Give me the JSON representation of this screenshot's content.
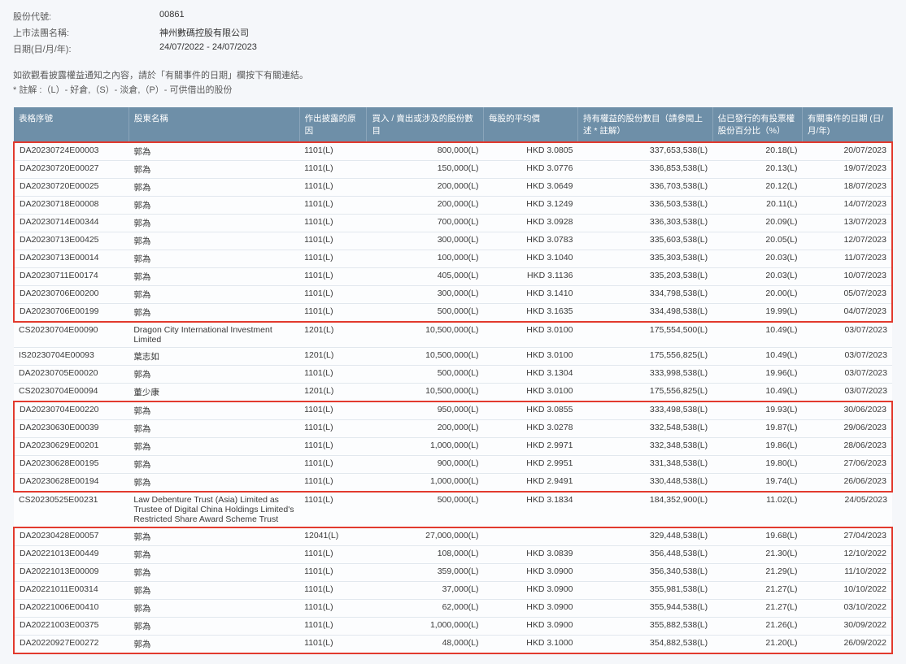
{
  "header": {
    "stock_code_label": "股份代號:",
    "stock_code_value": "00861",
    "issuer_label": "上市法團名稱:",
    "issuer_value": "神州數碼控股有限公司",
    "date_label": "日期(日/月/年):",
    "date_value": "24/07/2022 - 24/07/2023"
  },
  "notes": {
    "line1": "如欲觀看披露權益通知之內容，請於「有關事件的日期」欄按下有關連結。",
    "line2": "* 註解 :（L）- 好倉,（S）- 淡倉,（P）- 可供借出的股份"
  },
  "columns": {
    "id": "表格序號",
    "name": "股東名稱",
    "reason": "作出披露的原因",
    "shares": "買入 / 賣出或涉及的股份數目",
    "price": "每股的平均價",
    "holding": "持有權益的股份數目（請參閱上述 * 註解）",
    "pct": "佔已發行的有投票權股份百分比（%）",
    "date": "有關事件的日期 (日/月/年)"
  },
  "rows": [
    {
      "id": "DA20230724E00003",
      "name": "郭為",
      "reason": "1101(L)",
      "shares": "800,000(L)",
      "price": "HKD 3.0805",
      "holding": "337,653,538(L)",
      "pct": "20.18(L)",
      "date": "20/07/2023",
      "hl": "start"
    },
    {
      "id": "DA20230720E00027",
      "name": "郭為",
      "reason": "1101(L)",
      "shares": "150,000(L)",
      "price": "HKD 3.0776",
      "holding": "336,853,538(L)",
      "pct": "20.13(L)",
      "date": "19/07/2023",
      "hl": "mid"
    },
    {
      "id": "DA20230720E00025",
      "name": "郭為",
      "reason": "1101(L)",
      "shares": "200,000(L)",
      "price": "HKD 3.0649",
      "holding": "336,703,538(L)",
      "pct": "20.12(L)",
      "date": "18/07/2023",
      "hl": "mid"
    },
    {
      "id": "DA20230718E00008",
      "name": "郭為",
      "reason": "1101(L)",
      "shares": "200,000(L)",
      "price": "HKD 3.1249",
      "holding": "336,503,538(L)",
      "pct": "20.11(L)",
      "date": "14/07/2023",
      "hl": "mid"
    },
    {
      "id": "DA20230714E00344",
      "name": "郭為",
      "reason": "1101(L)",
      "shares": "700,000(L)",
      "price": "HKD 3.0928",
      "holding": "336,303,538(L)",
      "pct": "20.09(L)",
      "date": "13/07/2023",
      "hl": "mid"
    },
    {
      "id": "DA20230713E00425",
      "name": "郭為",
      "reason": "1101(L)",
      "shares": "300,000(L)",
      "price": "HKD 3.0783",
      "holding": "335,603,538(L)",
      "pct": "20.05(L)",
      "date": "12/07/2023",
      "hl": "mid"
    },
    {
      "id": "DA20230713E00014",
      "name": "郭為",
      "reason": "1101(L)",
      "shares": "100,000(L)",
      "price": "HKD 3.1040",
      "holding": "335,303,538(L)",
      "pct": "20.03(L)",
      "date": "11/07/2023",
      "hl": "mid"
    },
    {
      "id": "DA20230711E00174",
      "name": "郭為",
      "reason": "1101(L)",
      "shares": "405,000(L)",
      "price": "HKD 3.1136",
      "holding": "335,203,538(L)",
      "pct": "20.03(L)",
      "date": "10/07/2023",
      "hl": "mid"
    },
    {
      "id": "DA20230706E00200",
      "name": "郭為",
      "reason": "1101(L)",
      "shares": "300,000(L)",
      "price": "HKD 3.1410",
      "holding": "334,798,538(L)",
      "pct": "20.00(L)",
      "date": "05/07/2023",
      "hl": "mid"
    },
    {
      "id": "DA20230706E00199",
      "name": "郭為",
      "reason": "1101(L)",
      "shares": "500,000(L)",
      "price": "HKD 3.1635",
      "holding": "334,498,538(L)",
      "pct": "19.99(L)",
      "date": "04/07/2023",
      "hl": "end"
    },
    {
      "id": "CS20230704E00090",
      "name": "Dragon City International Investment Limited",
      "reason": "1201(L)",
      "shares": "10,500,000(L)",
      "price": "HKD 3.0100",
      "holding": "175,554,500(L)",
      "pct": "10.49(L)",
      "date": "03/07/2023",
      "hl": ""
    },
    {
      "id": "IS20230704E00093",
      "name": "葉志如",
      "reason": "1201(L)",
      "shares": "10,500,000(L)",
      "price": "HKD 3.0100",
      "holding": "175,556,825(L)",
      "pct": "10.49(L)",
      "date": "03/07/2023",
      "hl": ""
    },
    {
      "id": "DA20230705E00020",
      "name": "郭為",
      "reason": "1101(L)",
      "shares": "500,000(L)",
      "price": "HKD 3.1304",
      "holding": "333,998,538(L)",
      "pct": "19.96(L)",
      "date": "03/07/2023",
      "hl": ""
    },
    {
      "id": "CS20230704E00094",
      "name": "董少康",
      "reason": "1201(L)",
      "shares": "10,500,000(L)",
      "price": "HKD 3.0100",
      "holding": "175,556,825(L)",
      "pct": "10.49(L)",
      "date": "03/07/2023",
      "hl": ""
    },
    {
      "id": "DA20230704E00220",
      "name": "郭為",
      "reason": "1101(L)",
      "shares": "950,000(L)",
      "price": "HKD 3.0855",
      "holding": "333,498,538(L)",
      "pct": "19.93(L)",
      "date": "30/06/2023",
      "hl": "start"
    },
    {
      "id": "DA20230630E00039",
      "name": "郭為",
      "reason": "1101(L)",
      "shares": "200,000(L)",
      "price": "HKD 3.0278",
      "holding": "332,548,538(L)",
      "pct": "19.87(L)",
      "date": "29/06/2023",
      "hl": "mid"
    },
    {
      "id": "DA20230629E00201",
      "name": "郭為",
      "reason": "1101(L)",
      "shares": "1,000,000(L)",
      "price": "HKD 2.9971",
      "holding": "332,348,538(L)",
      "pct": "19.86(L)",
      "date": "28/06/2023",
      "hl": "mid"
    },
    {
      "id": "DA20230628E00195",
      "name": "郭為",
      "reason": "1101(L)",
      "shares": "900,000(L)",
      "price": "HKD 2.9951",
      "holding": "331,348,538(L)",
      "pct": "19.80(L)",
      "date": "27/06/2023",
      "hl": "mid"
    },
    {
      "id": "DA20230628E00194",
      "name": "郭為",
      "reason": "1101(L)",
      "shares": "1,000,000(L)",
      "price": "HKD 2.9491",
      "holding": "330,448,538(L)",
      "pct": "19.74(L)",
      "date": "26/06/2023",
      "hl": "end"
    },
    {
      "id": "CS20230525E00231",
      "name": "Law Debenture Trust (Asia) Limited as Trustee of Digital China Holdings Limited's Restricted Share Award Scheme Trust",
      "reason": "1101(L)",
      "shares": "500,000(L)",
      "price": "HKD 3.1834",
      "holding": "184,352,900(L)",
      "pct": "11.02(L)",
      "date": "24/05/2023",
      "hl": ""
    },
    {
      "id": "DA20230428E00057",
      "name": "郭為",
      "reason": "12041(L)",
      "shares": "27,000,000(L)",
      "price": "",
      "holding": "329,448,538(L)",
      "pct": "19.68(L)",
      "date": "27/04/2023",
      "hl": "start"
    },
    {
      "id": "DA20221013E00449",
      "name": "郭為",
      "reason": "1101(L)",
      "shares": "108,000(L)",
      "price": "HKD 3.0839",
      "holding": "356,448,538(L)",
      "pct": "21.30(L)",
      "date": "12/10/2022",
      "hl": "mid"
    },
    {
      "id": "DA20221013E00009",
      "name": "郭為",
      "reason": "1101(L)",
      "shares": "359,000(L)",
      "price": "HKD 3.0900",
      "holding": "356,340,538(L)",
      "pct": "21.29(L)",
      "date": "11/10/2022",
      "hl": "mid"
    },
    {
      "id": "DA20221011E00314",
      "name": "郭為",
      "reason": "1101(L)",
      "shares": "37,000(L)",
      "price": "HKD 3.0900",
      "holding": "355,981,538(L)",
      "pct": "21.27(L)",
      "date": "10/10/2022",
      "hl": "mid"
    },
    {
      "id": "DA20221006E00410",
      "name": "郭為",
      "reason": "1101(L)",
      "shares": "62,000(L)",
      "price": "HKD 3.0900",
      "holding": "355,944,538(L)",
      "pct": "21.27(L)",
      "date": "03/10/2022",
      "hl": "mid"
    },
    {
      "id": "DA20221003E00375",
      "name": "郭為",
      "reason": "1101(L)",
      "shares": "1,000,000(L)",
      "price": "HKD 3.0900",
      "holding": "355,882,538(L)",
      "pct": "21.26(L)",
      "date": "30/09/2022",
      "hl": "mid"
    },
    {
      "id": "DA20220927E00272",
      "name": "郭為",
      "reason": "1101(L)",
      "shares": "48,000(L)",
      "price": "HKD 3.1000",
      "holding": "354,882,538(L)",
      "pct": "21.20(L)",
      "date": "26/09/2022",
      "hl": "end"
    }
  ]
}
